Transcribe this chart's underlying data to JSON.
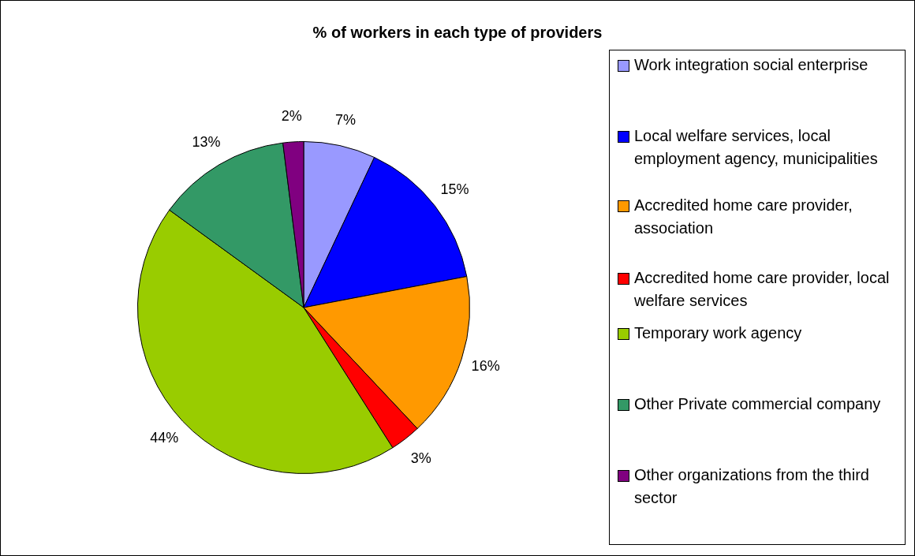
{
  "chart_data": {
    "type": "pie",
    "title": "% of workers in each type of providers",
    "categories": [
      "Work integration social enterprise",
      "Local welfare services, local employment agency, municipalities",
      "Accredited home care provider, association",
      "Accredited  home care provider, local welfare services",
      "Temporary work agency",
      "Other Private commercial company",
      "Other organizations from the third sector"
    ],
    "values": [
      7,
      15,
      16,
      3,
      44,
      13,
      2
    ],
    "value_labels": [
      "7%",
      "15%",
      "16%",
      "3%",
      "44%",
      "13%",
      "2%"
    ],
    "colors": [
      "#9999ff",
      "#0000ff",
      "#ff9900",
      "#ff0000",
      "#99cc00",
      "#339966",
      "#800080"
    ],
    "legend": "right"
  }
}
